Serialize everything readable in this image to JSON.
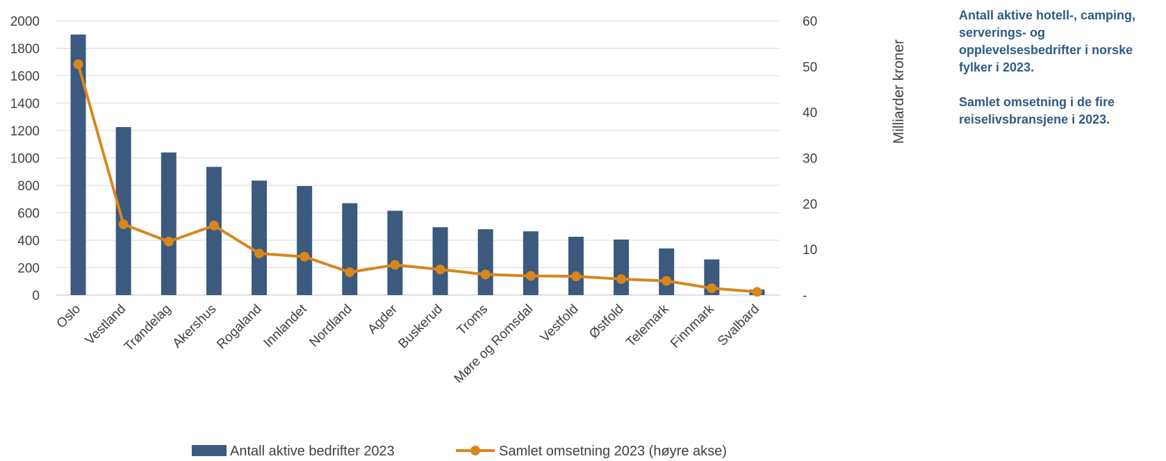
{
  "notes": {
    "caption_1": "Antall aktive hotell-, camping, serverings- og opplevelsesbedrifter i norske fylker i 2023.",
    "caption_2": "Samlet omsetning i de fire reiselivsbransjene i 2023."
  },
  "chart_data": {
    "type": "bar",
    "categories": [
      "Oslo",
      "Vestland",
      "Trøndelag",
      "Akershus",
      "Rogaland",
      "Innlandet",
      "Nordland",
      "Agder",
      "Buskerud",
      "Troms",
      "Møre og Romsdal",
      "Vestfold",
      "Østfold",
      "Telemark",
      "Finnmark",
      "Svalbard"
    ],
    "series": [
      {
        "name": "Antall aktive bedrifter 2023",
        "type": "bar",
        "axis": "left",
        "color": "#3b5a7d",
        "values": [
          1900,
          1225,
          1040,
          935,
          835,
          795,
          670,
          615,
          495,
          480,
          465,
          425,
          405,
          340,
          260,
          40
        ]
      },
      {
        "name": "Samlet omsetning 2023 (høyre akse)",
        "type": "line",
        "axis": "right",
        "color": "#d9861c",
        "values": [
          50.5,
          15.5,
          11.7,
          15.2,
          9.1,
          8.4,
          5.0,
          6.6,
          5.6,
          4.5,
          4.2,
          4.1,
          3.5,
          3.1,
          1.5,
          0.7
        ]
      }
    ],
    "y_left": {
      "min": 0,
      "max": 2000,
      "ticks": [
        "0",
        "200",
        "400",
        "600",
        "800",
        "1000",
        "1200",
        "1400",
        "1600",
        "1800",
        "2000"
      ]
    },
    "y_right": {
      "min": 0,
      "max": 60,
      "label": "Milliarder kroner",
      "ticks": [
        "-",
        "10",
        "20",
        "30",
        "40",
        "50",
        "60"
      ]
    },
    "grid": true,
    "legend_position": "bottom"
  }
}
